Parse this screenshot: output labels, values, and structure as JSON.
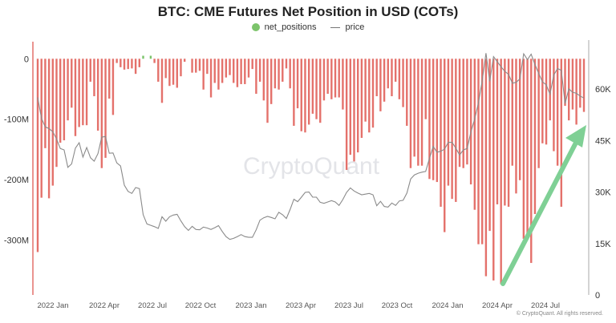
{
  "chart_data": {
    "type": "bar",
    "title": "BTC: CME Futures Net Position in USD (COTs)",
    "legend": {
      "placement": "top",
      "entries": [
        "net_positions",
        "price"
      ]
    },
    "watermark": "CryptoQuant",
    "copyright": "© CryptoQuant. All rights reserved.",
    "x_ticks": [
      "2022 Jan",
      "2022 Apr",
      "2022 Jul",
      "2022 Oct",
      "2023 Jan",
      "2023 Apr",
      "2023 Jul",
      "2023 Oct",
      "2024 Jan",
      "2024 Apr",
      "2024 Jul"
    ],
    "y_left": {
      "ticks": [
        0,
        -100,
        -200,
        -300
      ],
      "tick_labels": [
        "0",
        "-100M",
        "-200M",
        "-300M"
      ],
      "unit": "M USD",
      "range": [
        -391,
        15
      ]
    },
    "y_right": {
      "ticks": [
        0,
        15,
        30,
        45,
        60
      ],
      "tick_labels": [
        "0",
        "15K",
        "30K",
        "45K",
        "60K"
      ],
      "unit": "K USD",
      "range": [
        0,
        71.5
      ]
    },
    "grid": false,
    "colors": {
      "negative": "#e4716b",
      "positive": "#7cc46b",
      "price": "#8a8a8a",
      "arrow": "#7fd095"
    },
    "series": [
      {
        "name": "net_positions",
        "type": "bar",
        "values": [
          -320,
          -230,
          -148,
          -231,
          -210,
          -179,
          -139,
          -135,
          -102,
          -81,
          -128,
          -113,
          -110,
          -110,
          -38,
          -62,
          -119,
          -181,
          -164,
          -66,
          -93,
          -7,
          -14,
          -18,
          -17,
          -16,
          -25,
          -14,
          5,
          0,
          5,
          -7,
          -38,
          -73,
          -32,
          -45,
          -43,
          -48,
          -29,
          -5,
          null,
          -23,
          -23,
          -20,
          -51,
          -25,
          -64,
          -40,
          -51,
          -40,
          -31,
          -27,
          -40,
          -47,
          -42,
          -42,
          -31,
          -17,
          -58,
          -38,
          -69,
          -106,
          -75,
          -49,
          -51,
          -38,
          -16,
          -49,
          -111,
          -82,
          -120,
          -122,
          -109,
          -91,
          -100,
          -106,
          -69,
          -58,
          -67,
          -64,
          -64,
          -84,
          -184,
          -159,
          -170,
          -155,
          -131,
          -104,
          -122,
          -114,
          -62,
          -87,
          -71,
          -49,
          -62,
          -38,
          -67,
          -80,
          -111,
          -181,
          -162,
          -177,
          -177,
          -100,
          -199,
          -201,
          -204,
          -245,
          -287,
          -210,
          -232,
          -237,
          -179,
          -181,
          -175,
          -208,
          -250,
          -307,
          -307,
          -360,
          -285,
          -367,
          -241,
          -373,
          -243,
          -245,
          -177,
          -223,
          -201,
          -298,
          -292,
          -338,
          -257,
          -181,
          -140,
          -142,
          -102,
          -153,
          -177,
          -245,
          -78,
          -102,
          -84,
          -109,
          -81,
          -88
        ]
      },
      {
        "name": "price",
        "type": "line",
        "values": [
          57.6,
          51.5,
          49,
          48.5,
          47.6,
          45.5,
          42.7,
          42.3,
          37.2,
          38.2,
          42.8,
          44.4,
          40.2,
          43,
          40,
          39,
          41.2,
          46,
          46.2,
          41.3,
          41.4,
          38.5,
          37.6,
          32,
          30.2,
          29.6,
          31.3,
          31,
          23.4,
          20.7,
          20.3,
          19.9,
          19.4,
          22.8,
          21.5,
          22.8,
          23.3,
          23.5,
          21.6,
          19.9,
          18.8,
          20,
          19.1,
          19,
          19.8,
          19.5,
          19.1,
          19.6,
          20.2,
          18.5,
          17,
          16.2,
          16.5,
          17,
          17.6,
          17,
          16.8,
          16.8,
          19,
          21.8,
          22.5,
          22.9,
          22.6,
          22.2,
          24.1,
          23.4,
          22.3,
          24.9,
          27.9,
          27.2,
          28.5,
          29.9,
          30,
          28.5,
          28.5,
          27,
          26.7,
          27.1,
          27.5,
          27.1,
          26.1,
          27.8,
          29.9,
          31.2,
          30.3,
          29.7,
          29.2,
          29.4,
          29.6,
          29.2,
          26,
          27.3,
          25.8,
          25.6,
          26.8,
          26.1,
          27.4,
          27.6,
          29.7,
          33.8,
          35,
          35.5,
          35.8,
          36,
          39.8,
          43.3,
          41.6,
          41.9,
          42.5,
          44.5,
          44.5,
          42.8,
          40.8,
          42.3,
          42.7,
          47.5,
          51.3,
          56,
          62.5,
          70.5,
          62.3,
          69.5,
          68,
          66.5,
          65.2,
          64.3,
          61.7,
          62,
          63,
          70.3,
          68.6,
          70.2,
          67.2,
          64.6,
          62.1,
          61.3,
          58.5,
          64.1,
          66,
          65.5,
          55.8,
          60.1,
          59.1,
          58.8,
          58,
          57.4
        ]
      }
    ]
  }
}
